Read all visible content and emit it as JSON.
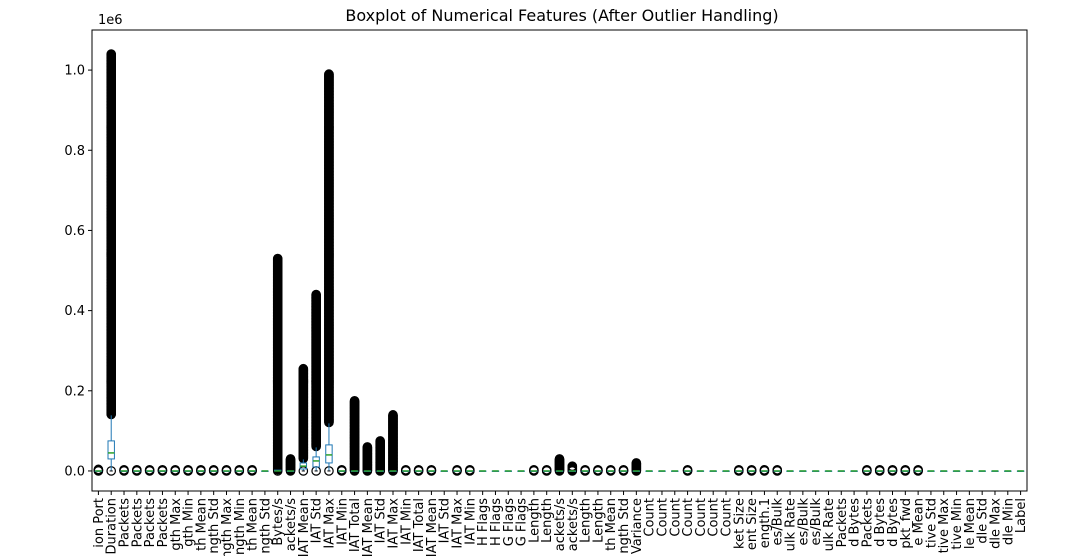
{
  "chart_data": {
    "type": "boxplot",
    "title": "Boxplot of Numerical Features (After Outlier Handling)",
    "xlabel": "",
    "ylabel": "",
    "y_offset_label": "1e6",
    "ylim": [
      -0.05,
      1.1
    ],
    "yticks": [
      "0.0",
      "0.2",
      "0.4",
      "0.6",
      "0.8",
      "1.0"
    ],
    "ytick_values": [
      0.0,
      0.2,
      0.4,
      0.6,
      0.8,
      1.0
    ],
    "grid": false,
    "colors": {
      "box": "#1f77b4",
      "median": "#2ca02c",
      "flier": "#000000"
    },
    "categories": [
      "ion Port",
      "Duration",
      "Packets",
      "Packets",
      "Packets",
      "Packets",
      "gth Max",
      "gth Min",
      "th Mean",
      "ngth Std",
      "ngth Max",
      "ngth Min",
      "th Mean",
      "ngth Std",
      "Bytes/s",
      "ackets/s",
      "IAT Mean",
      "IAT Std",
      "IAT Max",
      "IAT Min",
      "IAT Total",
      "IAT Mean",
      "IAT Std",
      "IAT Max",
      "IAT Min",
      "IAT Total",
      "IAT Mean",
      "IAT Std",
      "IAT Max",
      "IAT Min",
      "H Flags",
      "H Flags",
      "G Flags",
      "G Flags",
      "Length",
      "Length",
      "ackets/s",
      "ackets/s",
      "Length",
      "Length",
      "th Mean",
      "ngth Std",
      "Variance",
      "Count",
      "Count",
      "Count",
      "Count",
      "Count",
      "Count",
      "Count",
      "ket Size",
      "ent Size",
      "ength.1",
      "es/Bulk",
      "ulk Rate",
      "es/Bulk",
      "es/Bulk",
      "ulk Rate",
      "Packets",
      "d Bytes",
      "Packets",
      "d Bytes",
      "d Bytes",
      "pkt_fwd",
      "e Mean",
      "tive Std",
      "tive Max",
      "tive Min",
      "le Mean",
      "dle Std",
      "dle Max",
      "dle Min",
      "Label"
    ],
    "series": [
      {
        "q1": 0,
        "median": 0,
        "q3": 0,
        "flier_max": 0.004
      },
      {
        "q1": 0.03,
        "median": 0.045,
        "q3": 0.075,
        "whisker_low": 0,
        "whisker_high": 0.14,
        "flier_max": 1.04
      },
      {
        "q1": 0,
        "median": 0,
        "q3": 0,
        "flier_max": 0.003
      },
      {
        "q1": 0,
        "median": 0,
        "q3": 0,
        "flier_max": 0.003
      },
      {
        "q1": 0,
        "median": 0,
        "q3": 0,
        "flier_max": 0.003
      },
      {
        "q1": 0,
        "median": 0,
        "q3": 0,
        "flier_max": 0.003
      },
      {
        "q1": 0,
        "median": 0,
        "q3": 0,
        "flier_max": 0.003
      },
      {
        "q1": 0,
        "median": 0,
        "q3": 0,
        "flier_max": 0.003
      },
      {
        "q1": 0,
        "median": 0,
        "q3": 0,
        "flier_max": 0.003
      },
      {
        "q1": 0,
        "median": 0,
        "q3": 0,
        "flier_max": 0.003
      },
      {
        "q1": 0,
        "median": 0,
        "q3": 0,
        "flier_max": 0.003
      },
      {
        "q1": 0,
        "median": 0,
        "q3": 0,
        "flier_max": 0.003
      },
      {
        "q1": 0,
        "median": 0,
        "q3": 0,
        "flier_max": 0.003
      },
      {
        "q1": 0,
        "median": 0,
        "q3": 0
      },
      {
        "q1": 0,
        "median": 0,
        "q3": 0.002,
        "flier_max": 0.53
      },
      {
        "q1": 0,
        "median": 0,
        "q3": 0,
        "flier_max": 0.03
      },
      {
        "q1": 0.005,
        "median": 0.012,
        "q3": 0.02,
        "whisker_low": 0,
        "whisker_high": 0.03,
        "flier_max": 0.255
      },
      {
        "q1": 0.01,
        "median": 0.025,
        "q3": 0.035,
        "whisker_low": 0,
        "whisker_high": 0.06,
        "flier_max": 0.44
      },
      {
        "q1": 0.02,
        "median": 0.04,
        "q3": 0.065,
        "whisker_low": 0,
        "whisker_high": 0.12,
        "flier_max": 0.99
      },
      {
        "q1": 0,
        "median": 0,
        "q3": 0,
        "flier_max": 0.003
      },
      {
        "q1": 0,
        "median": 0,
        "q3": 0,
        "flier_max": 0.175
      },
      {
        "q1": 0,
        "median": 0,
        "q3": 0,
        "flier_max": 0.06
      },
      {
        "q1": 0,
        "median": 0,
        "q3": 0,
        "flier_max": 0.075
      },
      {
        "q1": 0,
        "median": 0,
        "q3": 0,
        "flier_max": 0.14
      },
      {
        "q1": 0,
        "median": 0,
        "q3": 0,
        "flier_max": 0.003
      },
      {
        "q1": 0,
        "median": 0,
        "q3": 0,
        "flier_max": 0.003
      },
      {
        "q1": 0,
        "median": 0,
        "q3": 0,
        "flier_max": 0.003
      },
      {
        "q1": 0,
        "median": 0,
        "q3": 0
      },
      {
        "q1": 0,
        "median": 0,
        "q3": 0,
        "flier_max": 0.003
      },
      {
        "q1": 0,
        "median": 0,
        "q3": 0,
        "flier_max": 0.003
      },
      {
        "q1": 0,
        "median": 0,
        "q3": 0
      },
      {
        "q1": 0,
        "median": 0,
        "q3": 0
      },
      {
        "q1": 0,
        "median": 0,
        "q3": 0
      },
      {
        "q1": 0,
        "median": 0,
        "q3": 0
      },
      {
        "q1": 0,
        "median": 0,
        "q3": 0,
        "flier_max": 0.003
      },
      {
        "q1": 0,
        "median": 0,
        "q3": 0,
        "flier_max": 0.003
      },
      {
        "q1": 0,
        "median": 0,
        "q3": 0,
        "flier_max": 0.03
      },
      {
        "q1": 0,
        "median": 0,
        "q3": 0,
        "flier_max": 0.012
      },
      {
        "q1": 0,
        "median": 0,
        "q3": 0,
        "flier_max": 0.003
      },
      {
        "q1": 0,
        "median": 0,
        "q3": 0,
        "flier_max": 0.003
      },
      {
        "q1": 0,
        "median": 0,
        "q3": 0,
        "flier_max": 0.003
      },
      {
        "q1": 0,
        "median": 0,
        "q3": 0,
        "flier_max": 0.003
      },
      {
        "q1": 0,
        "median": 0,
        "q3": 0,
        "flier_max": 0.02
      },
      {
        "q1": 0,
        "median": 0,
        "q3": 0
      },
      {
        "q1": 0,
        "median": 0,
        "q3": 0
      },
      {
        "q1": 0,
        "median": 0,
        "q3": 0
      },
      {
        "q1": 0,
        "median": 0,
        "q3": 0,
        "flier_max": 0.003
      },
      {
        "q1": 0,
        "median": 0,
        "q3": 0
      },
      {
        "q1": 0,
        "median": 0,
        "q3": 0
      },
      {
        "q1": 0,
        "median": 0,
        "q3": 0
      },
      {
        "q1": 0,
        "median": 0,
        "q3": 0,
        "flier_max": 0.003
      },
      {
        "q1": 0,
        "median": 0,
        "q3": 0,
        "flier_max": 0.003
      },
      {
        "q1": 0,
        "median": 0,
        "q3": 0,
        "flier_max": 0.003
      },
      {
        "q1": 0,
        "median": 0,
        "q3": 0,
        "flier_max": 0.003
      },
      {
        "q1": 0,
        "median": 0,
        "q3": 0
      },
      {
        "q1": 0,
        "median": 0,
        "q3": 0
      },
      {
        "q1": 0,
        "median": 0,
        "q3": 0
      },
      {
        "q1": 0,
        "median": 0,
        "q3": 0
      },
      {
        "q1": 0,
        "median": 0,
        "q3": 0
      },
      {
        "q1": 0,
        "median": 0,
        "q3": 0
      },
      {
        "q1": 0,
        "median": 0,
        "q3": 0,
        "flier_max": 0.003
      },
      {
        "q1": 0,
        "median": 0,
        "q3": 0,
        "flier_max": 0.003
      },
      {
        "q1": 0,
        "median": 0,
        "q3": 0,
        "flier_max": 0.003
      },
      {
        "q1": 0,
        "median": 0,
        "q3": 0,
        "flier_max": 0.003
      },
      {
        "q1": 0,
        "median": 0,
        "q3": 0,
        "flier_max": 0.003
      },
      {
        "q1": 0,
        "median": 0,
        "q3": 0
      },
      {
        "q1": 0,
        "median": 0,
        "q3": 0
      },
      {
        "q1": 0,
        "median": 0,
        "q3": 0
      },
      {
        "q1": 0,
        "median": 0,
        "q3": 0
      },
      {
        "q1": 0,
        "median": 0,
        "q3": 0
      },
      {
        "q1": 0,
        "median": 0,
        "q3": 0
      },
      {
        "q1": 0,
        "median": 0,
        "q3": 0
      },
      {
        "q1": 0,
        "median": 0,
        "q3": 0
      }
    ]
  }
}
